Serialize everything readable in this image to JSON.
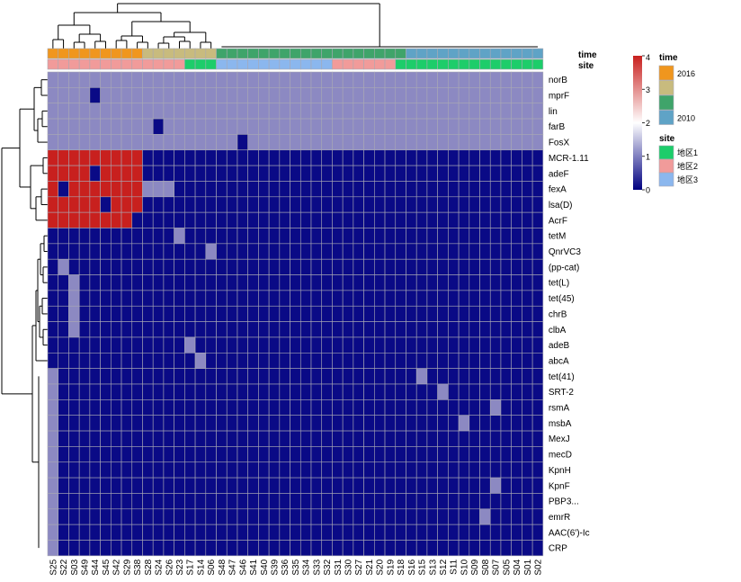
{
  "chart_data": {
    "type": "heatmap",
    "columns": [
      "S25",
      "S22",
      "S03",
      "S49",
      "S44",
      "S45",
      "S42",
      "S29",
      "S38",
      "S28",
      "S24",
      "S26",
      "S23",
      "S17",
      "S14",
      "S06",
      "S48",
      "S47",
      "S46",
      "S41",
      "S40",
      "S39",
      "S36",
      "S35",
      "S34",
      "S33",
      "S32",
      "S31",
      "S30",
      "S27",
      "S21",
      "S20",
      "S19",
      "S18",
      "S16",
      "S15",
      "S13",
      "S12",
      "S11",
      "S10",
      "S09",
      "S08",
      "S07",
      "S05",
      "S04",
      "S01",
      "S02"
    ],
    "rows": [
      "norB",
      "mprF",
      "lin",
      "farB",
      "FosX",
      "MCR-1.11",
      "adeF",
      "fexA",
      "lsa(D)",
      "AcrF",
      "tetM",
      "QnrVC3",
      "(pp-cat)",
      "tet(L)",
      "tet(45)",
      "chrB",
      "clbA",
      "adeB",
      "abcA",
      "tet(41)",
      "SRT-2",
      "rsmA",
      "msbA",
      "MexJ",
      "mecD",
      "KpnH",
      "KpnF",
      "PBP3...",
      "emrR",
      "AAC(6')-Ic",
      "CRP"
    ],
    "defaults": {
      "group_1_rows": [
        "norB",
        "mprF",
        "lin",
        "farB",
        "FosX"
      ],
      "group_1_value": 2,
      "group_2_rows": [
        "MCR-1.11",
        "adeF",
        "fexA",
        "lsa(D)",
        "AcrF"
      ],
      "group_2_high_columns": [
        "S25",
        "S22",
        "S03",
        "S49",
        "S44",
        "S45",
        "S42",
        "S29",
        "S38"
      ],
      "group_2_high_value": 4,
      "background_value": 0
    },
    "overrides": [
      {
        "row": "mprF",
        "col": "S44",
        "value": 0
      },
      {
        "row": "farB",
        "col": "S24",
        "value": 0
      },
      {
        "row": "FosX",
        "col": "S46",
        "value": 0
      },
      {
        "row": "adeF",
        "col": "S44",
        "value": 0
      },
      {
        "row": "fexA",
        "col": "S22",
        "value": 0
      },
      {
        "row": "lsa(D)",
        "col": "S45",
        "value": 0
      },
      {
        "row": "AcrF",
        "col": "S38",
        "value": 0
      },
      {
        "row": "fexA",
        "col": "S28",
        "value": 2
      },
      {
        "row": "fexA",
        "col": "S24",
        "value": 2
      },
      {
        "row": "fexA",
        "col": "S26",
        "value": 2
      },
      {
        "row": "tetM",
        "col": "S23",
        "value": 2
      },
      {
        "row": "QnrVC3",
        "col": "S06",
        "value": 2
      },
      {
        "row": "(pp-cat)",
        "col": "S22",
        "value": 2
      },
      {
        "row": "tet(L)",
        "col": "S03",
        "value": 2
      },
      {
        "row": "tet(45)",
        "col": "S03",
        "value": 2
      },
      {
        "row": "chrB",
        "col": "S03",
        "value": 2
      },
      {
        "row": "clbA",
        "col": "S03",
        "value": 2
      },
      {
        "row": "adeB",
        "col": "S17",
        "value": 2
      },
      {
        "row": "abcA",
        "col": "S14",
        "value": 2
      },
      {
        "row": "tet(41)",
        "col": "S15",
        "value": 2
      },
      {
        "row": "SRT-2",
        "col": "S12",
        "value": 2
      },
      {
        "row": "rsmA",
        "col": "S07",
        "value": 2
      },
      {
        "row": "msbA",
        "col": "S10",
        "value": 2
      },
      {
        "row": "KpnF",
        "col": "S07",
        "value": 2
      },
      {
        "row": "emrR",
        "col": "S08",
        "value": 2
      }
    ],
    "extra_column_S25_rows": [
      "tet(41)",
      "SRT-2",
      "rsmA",
      "msbA",
      "MexJ",
      "mecD",
      "KpnH",
      "KpnF",
      "PBP3...",
      "emrR",
      "AAC(6')-Ic",
      "CRP"
    ],
    "extra_column_S25_value": 2,
    "annotations": {
      "time": [
        "2016",
        "2016",
        "2016",
        "2016",
        "2016",
        "2016",
        "2016",
        "2016",
        "2016",
        "t2",
        "t2",
        "t2",
        "t2",
        "t2",
        "t2",
        "t2",
        "t3",
        "t3",
        "t3",
        "t3",
        "t3",
        "t3",
        "t3",
        "t3",
        "t3",
        "t3",
        "t3",
        "t3",
        "t3",
        "t3",
        "t3",
        "t3",
        "t3",
        "t3",
        "2010",
        "2010",
        "2010",
        "2010",
        "2010",
        "2010",
        "2010",
        "2010",
        "2010",
        "2010",
        "2010",
        "2010",
        "2010"
      ],
      "site": [
        "地区2",
        "地区2",
        "地区2",
        "地区2",
        "地区2",
        "地区2",
        "地区2",
        "地区2",
        "地区2",
        "地区2",
        "地区2",
        "地区2",
        "地区2",
        "地区1",
        "地区1",
        "地区1",
        "地区3",
        "地区3",
        "地区3",
        "地区3",
        "地区3",
        "地区3",
        "地区3",
        "地区3",
        "地区3",
        "地区3",
        "地区3",
        "地区2",
        "地区2",
        "地区2",
        "地区2",
        "地区2",
        "地区2",
        "地区1",
        "地区1",
        "地区1",
        "地区1",
        "地区1",
        "地区1",
        "地区1",
        "地区1",
        "地区1",
        "地区1",
        "地区1",
        "地区1",
        "地区1",
        "地区1"
      ]
    },
    "annotation_labels": {
      "time": "time",
      "site": "site"
    },
    "time_colors": {
      "2016": "#f0961e",
      "t2": "#c8bb7e",
      "t3": "#3fa46a",
      "2010": "#5fa3c6"
    },
    "site_colors": {
      "地区1": "#1dcd6a",
      "地区2": "#f19b9a",
      "地区3": "#8bb7ee"
    },
    "color_scale": {
      "min": 0,
      "max": 4,
      "ticks": [
        0,
        1,
        2,
        3,
        4
      ],
      "low": "#000080",
      "mid": "#ffffff",
      "high": "#c8201e"
    },
    "value_colors": {
      "0": "#0a0a86",
      "2": "#8c89c2",
      "4": "#c8201e"
    },
    "legend": {
      "time_title": "time",
      "time_entries": [
        {
          "key": "2016",
          "label": "2016"
        },
        {
          "key": "t2",
          "label": ""
        },
        {
          "key": "t3",
          "label": ""
        },
        {
          "key": "2010",
          "label": "2010"
        }
      ],
      "site_title": "site",
      "site_entries": [
        {
          "key": "地区1",
          "label": "地区1"
        },
        {
          "key": "地区2",
          "label": "地区2"
        },
        {
          "key": "地区3",
          "label": "地区3"
        }
      ]
    },
    "legend_placement": "right"
  }
}
